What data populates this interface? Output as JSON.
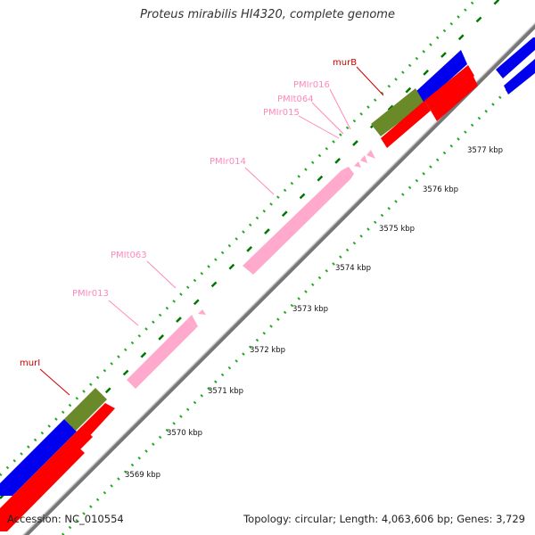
{
  "title": "Proteus mirabilis HI4320, complete genome",
  "accession": "Accession: NC_010554",
  "summary": "Topology: circular; Length: 4,063,606 bp; Genes: 3,729",
  "ticks": [
    "3569 kbp",
    "3570 kbp",
    "3571 kbp",
    "3572 kbp",
    "3573 kbp",
    "3574 kbp",
    "3575 kbp",
    "3576 kbp",
    "3577 kbp"
  ],
  "features": {
    "murI": "murI",
    "murB": "murB",
    "PMIr013": "PMIr013",
    "PMIt063": "PMIt063",
    "PMIr014": "PMIr014",
    "PMIr015": "PMIr015",
    "PMIt064": "PMIt064",
    "PMIr016": "PMIr016"
  },
  "colors": {
    "gene": "#cc0000",
    "rna": "#ff88bb",
    "blue_track": "#0000ee",
    "red_track": "#ff0000",
    "green_track": "#6a8a2a",
    "pink_track": "#ffaacc",
    "dots": "#22aa22",
    "dashes": "#007700",
    "backbone": "#888888"
  }
}
